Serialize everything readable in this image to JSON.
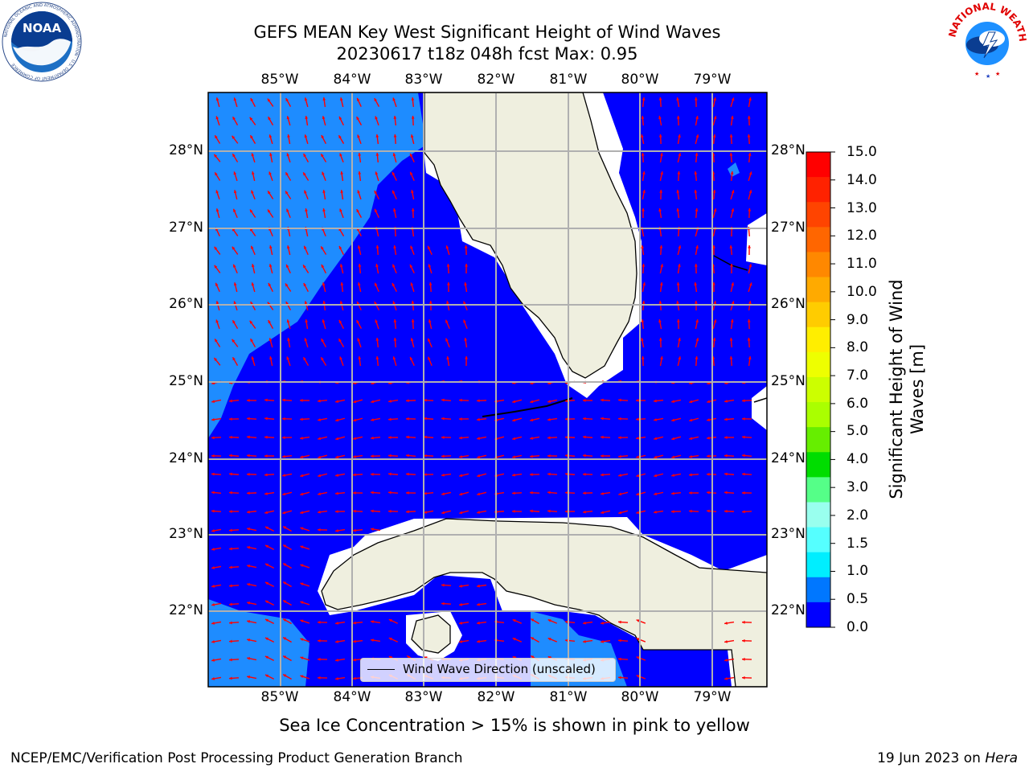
{
  "header": {
    "title_line1": "GEFS MEAN Key West Significant Height of Wind Waves",
    "title_line2": "20230617 t18z 048h fcst   Max: 0.95"
  },
  "logos": {
    "left": {
      "name": "NOAA",
      "text": "NOAA",
      "ring_text": "NATIONAL OCEANIC AND ATMOSPHERIC ADMINISTRATION · U.S. DEPARTMENT OF COMMERCE"
    },
    "right": {
      "name": "National Weather Service",
      "ring_text": "NATIONAL WEATHER SERVICE"
    }
  },
  "map": {
    "region": "Florida Straits / Key West",
    "lon_labels": [
      "85°W",
      "84°W",
      "83°W",
      "82°W",
      "81°W",
      "80°W",
      "79°W"
    ],
    "lat_labels": [
      "28°N",
      "27°N",
      "26°N",
      "25°N",
      "24°N",
      "23°N",
      "22°N"
    ],
    "colors": {
      "ocean_low": "#0000ff",
      "ocean_mid": "#1e8cff",
      "land": "#efefdf",
      "arrow": "#ff0000",
      "grid": "#b0b0b0"
    }
  },
  "legend": {
    "label": "Wind Wave Direction (unscaled)"
  },
  "colorbar": {
    "title_line1": "Significant Height of Wind",
    "title_line2": "Waves [m]",
    "ticks": [
      "15.0",
      "14.0",
      "13.0",
      "12.0",
      "11.0",
      "10.0",
      "9.0",
      "8.0",
      "7.0",
      "6.0",
      "5.0",
      "4.0",
      "3.0",
      "2.0",
      "1.5",
      "1.0",
      "0.5",
      "0.0"
    ],
    "colors": [
      "#ff0000",
      "#ff2200",
      "#ff4400",
      "#ff6600",
      "#ff8800",
      "#ffaa00",
      "#ffcc00",
      "#ffee00",
      "#eeff00",
      "#ccff00",
      "#aaff00",
      "#66ee00",
      "#00dd00",
      "#55ff88",
      "#99ffee",
      "#55ffff",
      "#00eeff",
      "#0077ff",
      "#0000ff"
    ]
  },
  "footer": {
    "note": "Sea Ice Concentration > 15% is shown in pink to yellow",
    "left": "NCEP/EMC/Verification Post Processing Product Generation Branch",
    "right_date": "19 Jun 2023 on",
    "right_host": "Hera"
  }
}
